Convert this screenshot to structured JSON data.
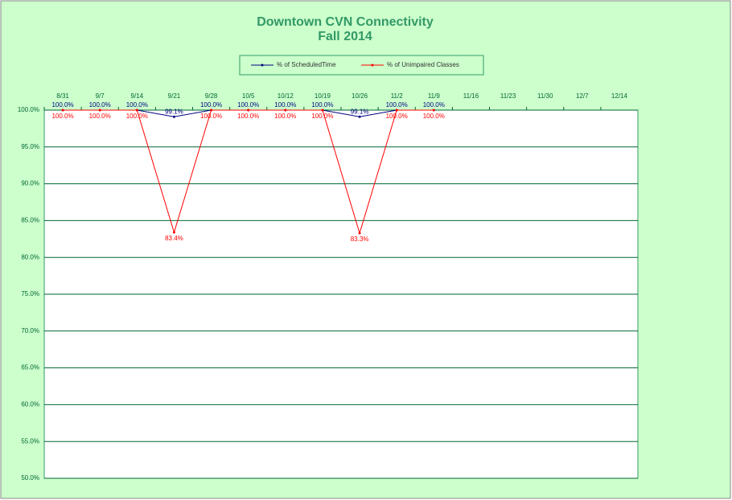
{
  "chart_data": {
    "type": "line",
    "title": "Downtown CVN Connectivity",
    "subtitle": "Fall 2014",
    "categories": [
      "8/31",
      "9/7",
      "9/14",
      "9/21",
      "9/28",
      "10/5",
      "10/12",
      "10/19",
      "10/26",
      "11/2",
      "11/9",
      "11/16",
      "11/23",
      "11/30",
      "12/7",
      "12/14"
    ],
    "series": [
      {
        "name": "% of ScheduledTime",
        "color": "#000080",
        "values": [
          100,
          100,
          100,
          99.1,
          100,
          100,
          100,
          100,
          99.1,
          100,
          100,
          null,
          null,
          null,
          null,
          null
        ],
        "value_labels": [
          "100.0%",
          "100.0%",
          "100.0%",
          "99.1%",
          "100.0%",
          "100.0%",
          "100.0%",
          "100.0%",
          "99.1%",
          "100.0%",
          "100.0%",
          null,
          null,
          null,
          null,
          null
        ]
      },
      {
        "name": "% of Unimpaired Classes",
        "color": "#ff0000",
        "values": [
          100,
          100,
          100,
          83.4,
          100,
          100,
          100,
          100,
          83.3,
          100,
          100,
          null,
          null,
          null,
          null,
          null
        ],
        "value_labels": [
          "100.0%",
          "100.0%",
          "100.0%",
          "83.4%",
          "100.0%",
          "100.0%",
          "100.0%",
          "100.0%",
          "83.3%",
          "100.0%",
          "100.0%",
          null,
          null,
          null,
          null,
          null
        ]
      }
    ],
    "ylim": [
      50,
      100
    ],
    "yticks": [
      {
        "value": 50,
        "label": "50.0%"
      },
      {
        "value": 55,
        "label": "55.0%"
      },
      {
        "value": 60,
        "label": "60.0%"
      },
      {
        "value": 65,
        "label": "65.0%"
      },
      {
        "value": 70,
        "label": "70.0%"
      },
      {
        "value": 75,
        "label": "75.0%"
      },
      {
        "value": 80,
        "label": "80.0%"
      },
      {
        "value": 85,
        "label": "85.0%"
      },
      {
        "value": 90,
        "label": "90.0%"
      },
      {
        "value": 95,
        "label": "95.0%"
      },
      {
        "value": 100,
        "label": "100.0%"
      }
    ],
    "grid": true,
    "legend": "top"
  }
}
